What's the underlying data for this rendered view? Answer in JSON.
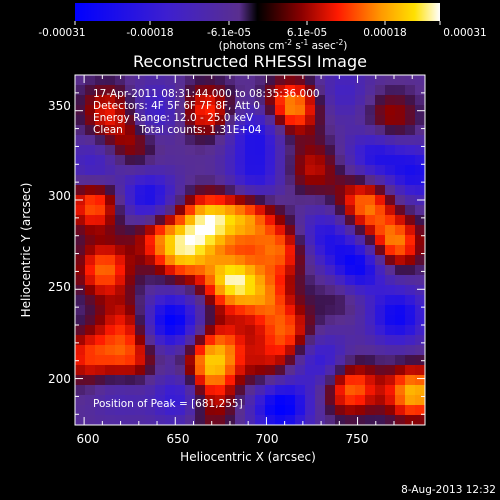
{
  "chart_data": {
    "type": "heatmap",
    "title": "Reconstructed RHESSI Image",
    "xlabel": "Heliocentric X (arcsec)",
    "ylabel": "Heliocentric Y (arcsec)",
    "xlim": [
      595,
      787
    ],
    "ylim": [
      174,
      370
    ],
    "xticks": [
      "600",
      "650",
      "700",
      "750"
    ],
    "yticks": [
      "200",
      "250",
      "300",
      "350"
    ],
    "annotations": [
      "17-Apr-2011 08:31:44.000 to 08:35:36.000",
      "Detectors: 4F 5F 6F 7F 8F, Att 0",
      "Energy Range: 12.0 - 25.0 keV",
      "Clean     Total counts: 1.31E+04"
    ],
    "peak_text": "Position of Peak = [681,255]",
    "peak": [
      681,
      255
    ],
    "colorbar": {
      "ticks": [
        "-0.00031",
        "-0.00018",
        "-6.1e-05",
        "6.1e-05",
        "0.00018",
        "0.00031"
      ],
      "units_main": "(photons cm",
      "units_sup1": "-2",
      "units_mid": " s",
      "units_sup2": "-1",
      "units_end": " asec",
      "units_sup3": "-2",
      "units_close": ")",
      "colormap": "blue-purple-red-orange-yellow-white"
    },
    "blobs": [
      {
        "x": 681,
        "y": 255,
        "v": 1.0
      },
      {
        "x": 668,
        "y": 288,
        "v": 0.95
      },
      {
        "x": 690,
        "y": 290,
        "v": 0.7
      },
      {
        "x": 655,
        "y": 270,
        "v": 0.8
      },
      {
        "x": 640,
        "y": 282,
        "v": 0.55
      },
      {
        "x": 708,
        "y": 272,
        "v": 0.65
      },
      {
        "x": 700,
        "y": 245,
        "v": 0.55
      },
      {
        "x": 606,
        "y": 298,
        "v": 0.75
      },
      {
        "x": 611,
        "y": 261,
        "v": 0.7
      },
      {
        "x": 622,
        "y": 232,
        "v": 0.45
      },
      {
        "x": 602,
        "y": 212,
        "v": 0.55
      },
      {
        "x": 625,
        "y": 210,
        "v": 0.6
      },
      {
        "x": 668,
        "y": 205,
        "v": 0.8
      },
      {
        "x": 676,
        "y": 220,
        "v": 0.5
      },
      {
        "x": 667,
        "y": 184,
        "v": 0.5
      },
      {
        "x": 613,
        "y": 350,
        "v": 0.5
      },
      {
        "x": 667,
        "y": 350,
        "v": 0.6
      },
      {
        "x": 714,
        "y": 352,
        "v": 0.85
      },
      {
        "x": 768,
        "y": 345,
        "v": 0.45
      },
      {
        "x": 754,
        "y": 298,
        "v": 0.75
      },
      {
        "x": 770,
        "y": 276,
        "v": 0.8
      },
      {
        "x": 743,
        "y": 250,
        "v": 0.35
      },
      {
        "x": 712,
        "y": 225,
        "v": 0.6
      },
      {
        "x": 702,
        "y": 205,
        "v": 0.4
      },
      {
        "x": 746,
        "y": 195,
        "v": 0.75
      },
      {
        "x": 781,
        "y": 192,
        "v": 0.9
      },
      {
        "x": 725,
        "y": 318,
        "v": 0.45
      },
      {
        "x": 625,
        "y": 330,
        "v": 0.4
      },
      {
        "x": 635,
        "y": 300,
        "v": -0.75
      },
      {
        "x": 648,
        "y": 232,
        "v": -0.9
      },
      {
        "x": 694,
        "y": 313,
        "v": -0.55
      },
      {
        "x": 607,
        "y": 318,
        "v": -0.45
      },
      {
        "x": 732,
        "y": 280,
        "v": -0.55
      },
      {
        "x": 750,
        "y": 262,
        "v": -0.95
      },
      {
        "x": 772,
        "y": 235,
        "v": -0.75
      },
      {
        "x": 782,
        "y": 315,
        "v": -0.6
      },
      {
        "x": 708,
        "y": 185,
        "v": -0.95
      },
      {
        "x": 655,
        "y": 190,
        "v": -0.7
      },
      {
        "x": 620,
        "y": 195,
        "v": -0.3
      },
      {
        "x": 760,
        "y": 325,
        "v": -0.6
      },
      {
        "x": 695,
        "y": 338,
        "v": -0.6
      },
      {
        "x": 640,
        "y": 350,
        "v": -0.4
      },
      {
        "x": 730,
        "y": 210,
        "v": -0.55
      },
      {
        "x": 742,
        "y": 360,
        "v": -0.3
      }
    ]
  },
  "footer": {
    "date": "8-Aug-2013 12:32"
  }
}
